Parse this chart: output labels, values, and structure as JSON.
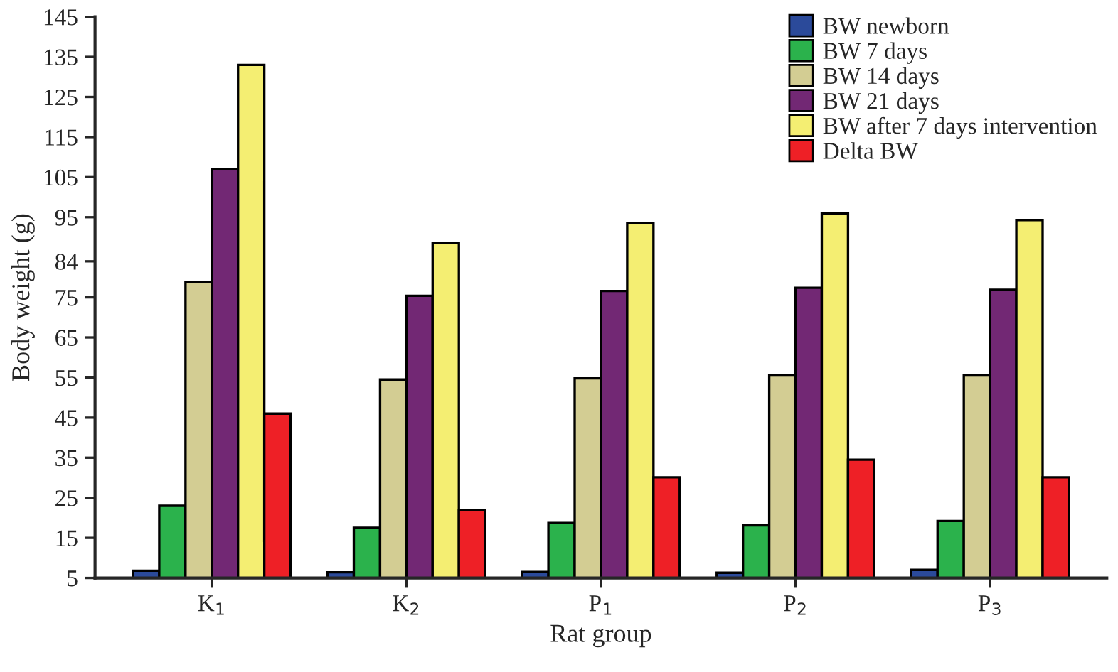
{
  "chart_data": {
    "type": "bar",
    "xlabel": "Rat group",
    "ylabel": "Body weight (g)",
    "categories": [
      "K$_{1}$",
      "K$_{2}$",
      "P$_{1}$",
      "P$_{2}$",
      "P$_{3}$"
    ],
    "series": [
      {
        "name": "BW newborn",
        "color": "#2b4a9a",
        "values": [
          6.8,
          6.4,
          6.5,
          6.3,
          7
        ]
      },
      {
        "name": "BW 7 days",
        "color": "#2bb24c",
        "values": [
          23,
          17.5,
          18.7,
          18.1,
          19.2
        ]
      },
      {
        "name": "BW 14 days",
        "color": "#d3cd93",
        "values": [
          78.9,
          54.5,
          54.8,
          55.5,
          55.5
        ]
      },
      {
        "name": "BW 21 days",
        "color": "#722874",
        "values": [
          107,
          75.4,
          76.6,
          77.4,
          76.9
        ]
      },
      {
        "name": "BW after 7 days intervention",
        "color": "#f4ee72",
        "values": [
          133,
          88.5,
          93.5,
          95.9,
          94.3
        ]
      },
      {
        "name": "Delta BW",
        "color": "#ee2026",
        "values": [
          46,
          21.9,
          30.1,
          34.5,
          30.1
        ]
      }
    ],
    "ylim": [
      5,
      145
    ],
    "yticks": [
      5,
      15,
      25,
      35,
      45,
      55,
      65,
      75,
      84,
      95,
      105,
      115,
      125,
      135,
      145
    ],
    "legend": "top right",
    "grid": false
  }
}
